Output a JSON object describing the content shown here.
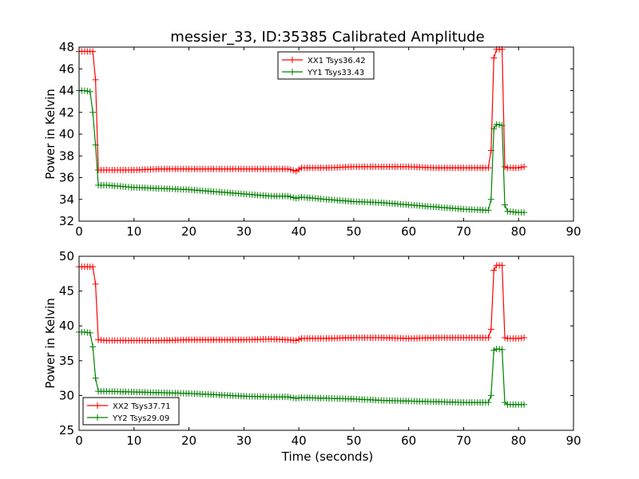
{
  "chart_data": [
    {
      "type": "line",
      "title": "messier_33, ID:35385 Calibrated Amplitude",
      "xlabel": "",
      "ylabel": "Power in Kelvin",
      "xlim": [
        0,
        90
      ],
      "ylim": [
        32,
        48
      ],
      "xticks": [
        0,
        10,
        20,
        30,
        40,
        50,
        60,
        70,
        80,
        90
      ],
      "yticks": [
        32,
        34,
        36,
        38,
        40,
        42,
        44,
        46,
        48
      ],
      "legend_position": "top-center",
      "x": [
        0,
        1,
        2,
        2.5,
        3,
        3.5,
        5,
        10,
        15,
        20,
        25,
        30,
        35,
        38,
        39.5,
        40.5,
        45,
        50,
        55,
        60,
        65,
        70,
        74.5,
        75,
        75.5,
        76,
        77,
        77.5,
        78,
        80,
        81
      ],
      "series": [
        {
          "name": "XX1 Tsys36.42",
          "color": "#ff0000",
          "values": [
            47.6,
            47.6,
            47.6,
            47.6,
            45.0,
            36.7,
            36.7,
            36.7,
            36.8,
            36.8,
            36.8,
            36.8,
            36.8,
            36.8,
            36.6,
            36.9,
            36.9,
            37.0,
            37.0,
            37.0,
            36.9,
            36.9,
            36.9,
            38.5,
            47.0,
            47.8,
            47.8,
            37.0,
            36.9,
            36.9,
            37.0
          ]
        },
        {
          "name": "YY1 Tsys33.43",
          "color": "#008000",
          "values": [
            44.0,
            44.0,
            43.9,
            42.0,
            39.0,
            35.3,
            35.3,
            35.1,
            35.0,
            34.9,
            34.7,
            34.5,
            34.3,
            34.3,
            34.1,
            34.2,
            34.0,
            33.8,
            33.7,
            33.5,
            33.3,
            33.1,
            33.0,
            34.0,
            40.5,
            40.9,
            40.8,
            33.5,
            32.9,
            32.8,
            32.8
          ]
        }
      ]
    },
    {
      "type": "line",
      "title": "",
      "xlabel": "Time (seconds)",
      "ylabel": "Power in Kelvin",
      "xlim": [
        0,
        90
      ],
      "ylim": [
        25,
        50
      ],
      "xticks": [
        0,
        10,
        20,
        30,
        40,
        50,
        60,
        70,
        80,
        90
      ],
      "yticks": [
        25,
        30,
        35,
        40,
        45,
        50
      ],
      "legend_position": "lower-left",
      "x": [
        0,
        1,
        2,
        2.5,
        3,
        3.5,
        5,
        10,
        15,
        20,
        25,
        30,
        35,
        38,
        39.5,
        40.5,
        45,
        50,
        55,
        60,
        65,
        70,
        74.5,
        75,
        75.5,
        76,
        77,
        77.5,
        78,
        80,
        81
      ],
      "series": [
        {
          "name": "XX2 Tsys37.71",
          "color": "#ff0000",
          "values": [
            48.5,
            48.5,
            48.5,
            48.5,
            46.0,
            38.0,
            37.9,
            37.9,
            37.9,
            38.0,
            38.0,
            38.0,
            38.1,
            38.0,
            37.9,
            38.2,
            38.2,
            38.3,
            38.3,
            38.2,
            38.3,
            38.3,
            38.3,
            39.5,
            48.0,
            48.7,
            48.7,
            38.3,
            38.2,
            38.2,
            38.3
          ]
        },
        {
          "name": "YY2 Tsys29.09",
          "color": "#008000",
          "values": [
            39.1,
            39.1,
            39.0,
            37.0,
            32.5,
            30.6,
            30.6,
            30.5,
            30.4,
            30.3,
            30.1,
            29.9,
            29.8,
            29.8,
            29.6,
            29.7,
            29.6,
            29.5,
            29.3,
            29.2,
            29.1,
            29.0,
            29.0,
            30.0,
            36.5,
            36.7,
            36.6,
            29.0,
            28.7,
            28.7,
            28.7
          ]
        }
      ]
    }
  ]
}
